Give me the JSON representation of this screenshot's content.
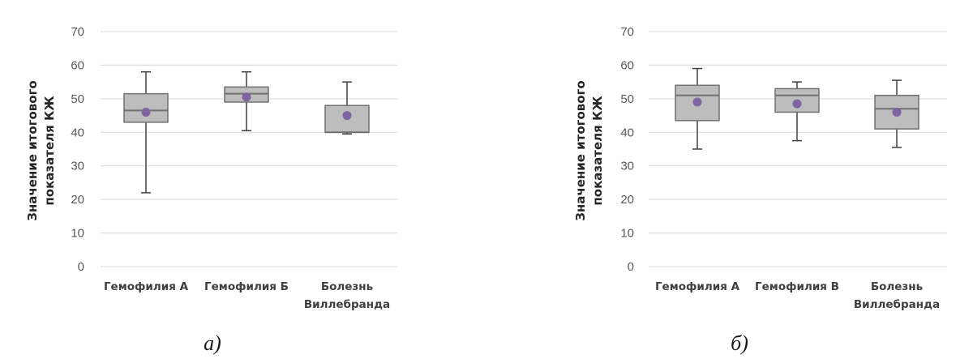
{
  "colors": {
    "box_fill": "#bdbdbd",
    "box_stroke": "#707070",
    "whisker": "#404040",
    "mean_marker": "#8064a2",
    "gridline": "#d9d9d9",
    "tick_text": "#595959"
  },
  "chart_data": [
    {
      "type": "boxplot",
      "caption": "а)",
      "ylabel_lines": [
        "Значение итогового",
        "показателя КЖ"
      ],
      "ylim": [
        0,
        70
      ],
      "yticks": [
        0,
        10,
        20,
        30,
        40,
        50,
        60,
        70
      ],
      "grid": true,
      "categories": [
        {
          "lines": [
            "Гемофилия А"
          ]
        },
        {
          "lines": [
            "Гемофилия Б"
          ]
        },
        {
          "lines": [
            "Болезнь",
            "Виллебранда"
          ]
        }
      ],
      "series": [
        {
          "min": 22,
          "q1": 43,
          "median": 46.5,
          "q3": 51.5,
          "max": 58,
          "mean": 46
        },
        {
          "min": 40.5,
          "q1": 49,
          "median": 51.5,
          "q3": 53.5,
          "max": 58,
          "mean": 50.5
        },
        {
          "min": 39.5,
          "q1": 40,
          "median": 40,
          "q3": 48,
          "max": 55,
          "mean": 45
        }
      ]
    },
    {
      "type": "boxplot",
      "caption": "б)",
      "ylabel_lines": [
        "Значение итогового",
        "показателя КЖ"
      ],
      "ylim": [
        0,
        70
      ],
      "yticks": [
        0,
        10,
        20,
        30,
        40,
        50,
        60,
        70
      ],
      "grid": true,
      "categories": [
        {
          "lines": [
            "Гемофилия А"
          ]
        },
        {
          "lines": [
            "Гемофилия В"
          ]
        },
        {
          "lines": [
            "Болезнь",
            "Виллебранда"
          ]
        }
      ],
      "series": [
        {
          "min": 35,
          "q1": 43.5,
          "median": 51,
          "q3": 54,
          "max": 59,
          "mean": 49
        },
        {
          "min": 37.5,
          "q1": 46,
          "median": 51,
          "q3": 53,
          "max": 55,
          "mean": 48.5
        },
        {
          "min": 35.5,
          "q1": 41,
          "median": 47,
          "q3": 51,
          "max": 55.5,
          "mean": 46
        }
      ]
    }
  ]
}
